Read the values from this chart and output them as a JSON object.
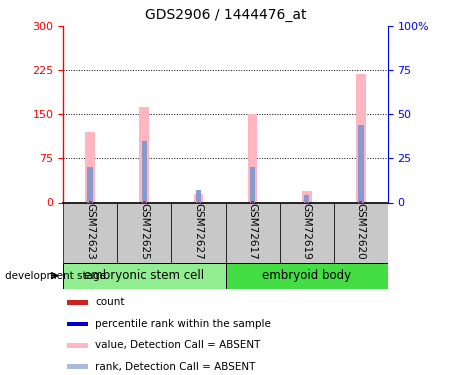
{
  "title": "GDS2906 / 1444476_at",
  "samples": [
    "GSM72623",
    "GSM72625",
    "GSM72627",
    "GSM72617",
    "GSM72619",
    "GSM72620"
  ],
  "groups": [
    {
      "name": "embryonic stem cell",
      "indices": [
        0,
        1,
        2
      ],
      "color": "#90EE90"
    },
    {
      "name": "embryoid body",
      "indices": [
        3,
        4,
        5
      ],
      "color": "#44DD44"
    }
  ],
  "pink_values": [
    120,
    163,
    14,
    150,
    20,
    218
  ],
  "blue_values": [
    20,
    35,
    7,
    20,
    4,
    44
  ],
  "red_values": [
    3,
    3,
    1,
    3,
    1,
    3
  ],
  "left_ylim": [
    0,
    300
  ],
  "right_ylim": [
    0,
    100
  ],
  "left_yticks": [
    0,
    75,
    150,
    225,
    300
  ],
  "right_yticks": [
    0,
    25,
    50,
    75,
    100
  ],
  "right_yticklabels": [
    "0",
    "25",
    "50",
    "75",
    "100%"
  ],
  "grid_values": [
    75,
    150,
    225
  ],
  "pink_bar_width": 0.18,
  "blue_bar_width": 0.1,
  "red_bar_width": 0.06,
  "pink_color": "#FFB6C1",
  "blue_color": "#8899CC",
  "red_color": "#CC2222",
  "bg_color": "#FFFFFF",
  "label_box_color": "#C8C8C8",
  "legend_items": [
    {
      "color": "#CC2222",
      "label": "count"
    },
    {
      "color": "#0000CC",
      "label": "percentile rank within the sample"
    },
    {
      "color": "#FFB6C1",
      "label": "value, Detection Call = ABSENT"
    },
    {
      "color": "#AABBDD",
      "label": "rank, Detection Call = ABSENT"
    }
  ]
}
